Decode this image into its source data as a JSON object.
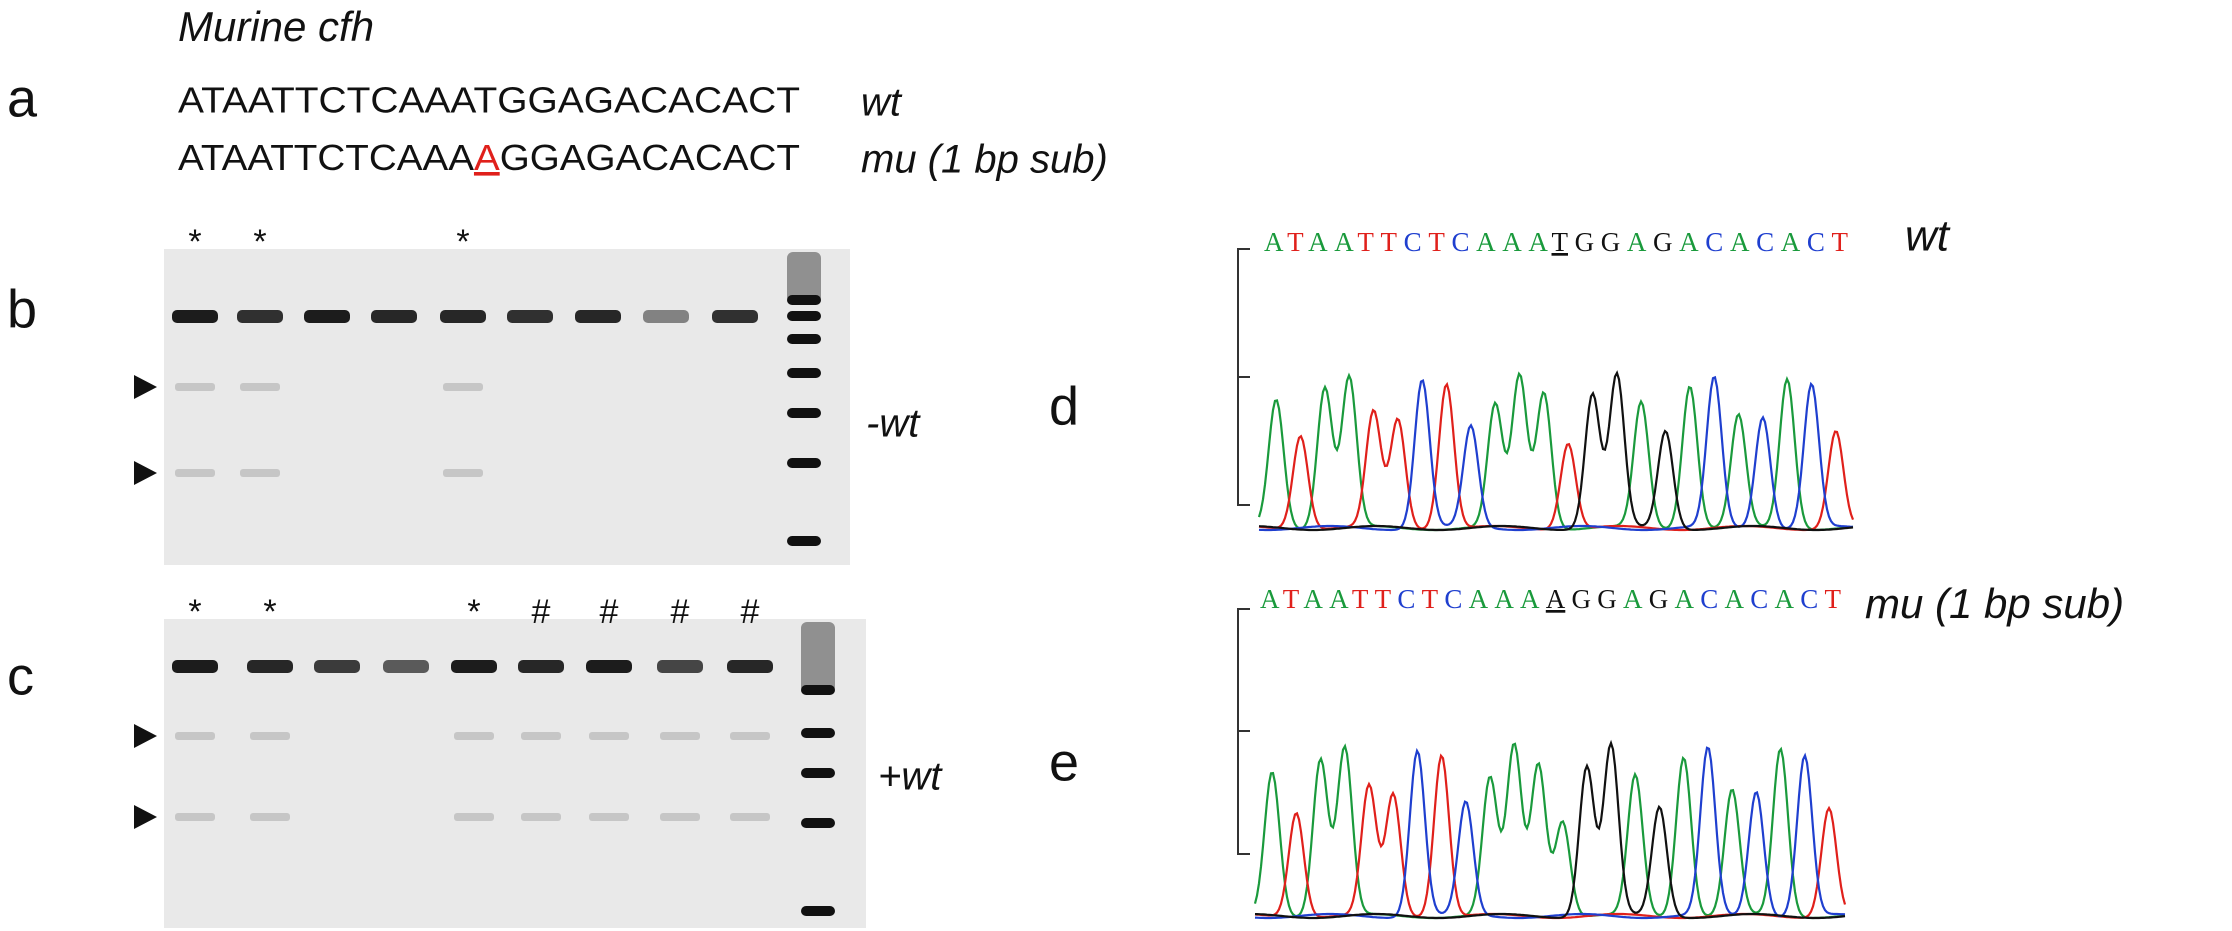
{
  "title": "Murine cfh",
  "panel_a": {
    "label": "a",
    "wt": {
      "sequence": "ATAATTCTCAAATGGAGACACACT",
      "label": "wt"
    },
    "mu": {
      "prefix": "ATAATTCTCAAA",
      "substitution": "A",
      "suffix": "GGAGACACACT",
      "label": "mu (1 bp sub)"
    }
  },
  "panel_b": {
    "label": "b",
    "lane_marks": [
      "*",
      "*",
      null,
      null,
      "*",
      null,
      null,
      null,
      null
    ],
    "condition": "-wt"
  },
  "panel_c": {
    "label": "c",
    "lane_marks": [
      "*",
      "*",
      null,
      null,
      "*",
      "#",
      "#",
      "#",
      "#"
    ],
    "condition": "+wt"
  },
  "panel_d": {
    "label": "d",
    "prefix": "ATAATTCTCAAA",
    "highlight": "T",
    "suffix": "GGAGACACACT",
    "genotype": "wt"
  },
  "panel_e": {
    "label": "e",
    "prefix": "ATAATTCTCAAA",
    "highlight": "A",
    "suffix": "GGAGACACACT",
    "genotype": "mu (1 bp sub)"
  }
}
